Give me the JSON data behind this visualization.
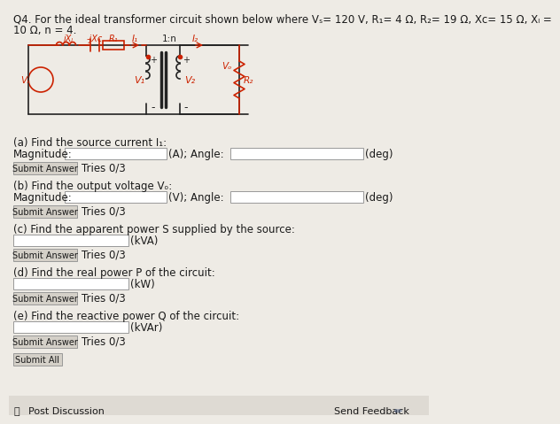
{
  "bg_color": "#eeebe5",
  "bottom_bar_color": "#dedad3",
  "text_color": "#1a1a1a",
  "button_color": "#d4d0c8",
  "button_border": "#999999",
  "input_bg": "#ffffff",
  "input_border": "#999999",
  "circuit_red": "#cc2200",
  "circuit_black": "#222222",
  "font_size_title": 8.5,
  "font_size_body": 8.5,
  "font_size_small": 7.5,
  "title_line1": "Q4. For the ideal transformer circuit shown below where Vₛ= 120 V, R₁= 4 Ω, R₂= 19 Ω, Xᴄ= 15 Ω, Xₗ =",
  "title_line2": "10 Ω, n = 4.",
  "part_a_label": "(a) Find the source current I₁:",
  "part_b_label": "(b) Find the output voltage Vₒ:",
  "part_c_label": "(c) Find the apparent power S supplied by the source:",
  "part_d_label": "(d) Find the real power P of the circuit:",
  "part_e_label": "(e) Find the reactive power Q of the circuit:",
  "mag_label": "Magnitude:",
  "unit_a": "(A); Angle:",
  "unit_v": "(V); Angle:",
  "unit_deg": "(deg)",
  "unit_kva": "(kVA)",
  "unit_kw": "(kW)",
  "unit_kvar": "(kVAr)",
  "submit_answer": "Submit Answer",
  "tries": "Tries 0/3",
  "submit_all": "Submit All",
  "post_discussion": "Post Discussion",
  "send_feedback": "Send Feedback"
}
